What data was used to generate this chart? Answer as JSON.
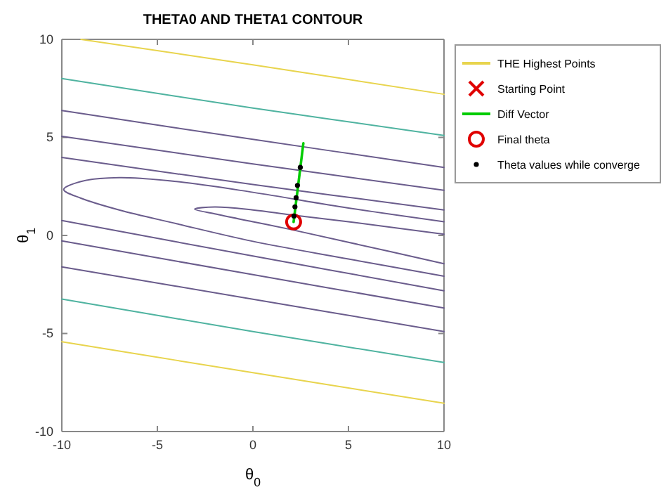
{
  "chart_data": {
    "type": "line",
    "title": "THETA0 AND THETA1 CONTOUR",
    "xlabel": "θ$_{0}$",
    "ylabel": "θ$_{1}$",
    "xlim": [
      -10,
      10
    ],
    "ylim": [
      -10,
      10
    ],
    "xticks": [
      -10,
      -5,
      0,
      5,
      10
    ],
    "yticks": [
      -10,
      -5,
      0,
      5,
      10
    ],
    "grid": false,
    "legend": "right",
    "series": [
      {
        "name": "THE Highest Points",
        "type": "line",
        "color": "#e8d44d",
        "x": [
          -9,
          0,
          10
        ],
        "values": [
          10,
          8.7,
          7.2
        ]
      },
      {
        "type": "line",
        "color": "#e8d44d",
        "x": [
          -10,
          0,
          10
        ],
        "values": [
          -5.42,
          -7,
          -8.56
        ]
      },
      {
        "type": "line",
        "color": "#4fb3a0",
        "x": [
          -10,
          0,
          10
        ],
        "values": [
          8,
          6.5,
          5.1
        ]
      },
      {
        "type": "line",
        "color": "#4fb3a0",
        "x": [
          -10,
          0,
          10
        ],
        "values": [
          -3.24,
          -4.9,
          -6.48
        ]
      },
      {
        "type": "line",
        "color": "#6a5c8c",
        "x": [
          -10,
          0,
          10
        ],
        "values": [
          6.37,
          4.9,
          3.47
        ]
      },
      {
        "type": "line",
        "color": "#6a5c8c",
        "x": [
          -10,
          0,
          10
        ],
        "values": [
          5.05,
          3.65,
          2.3
        ]
      },
      {
        "type": "line",
        "color": "#6a5c8c",
        "x": [
          -10,
          0,
          10
        ],
        "values": [
          3.98,
          2.6,
          1.3
        ]
      },
      {
        "type": "line",
        "color": "#6a5c8c",
        "x": [
          -10,
          0,
          10
        ],
        "values": [
          0.76,
          -1.05,
          -2.82
        ]
      },
      {
        "type": "line",
        "color": "#6a5c8c",
        "x": [
          -10,
          0,
          10
        ],
        "values": [
          -0.28,
          -2,
          -3.7
        ]
      },
      {
        "type": "line",
        "color": "#6a5c8c",
        "x": [
          -10,
          0,
          10
        ],
        "values": [
          -1.6,
          -3.25,
          -4.9
        ]
      },
      {
        "type": "line",
        "color": "#6a5c8c",
        "x": [
          10,
          5,
          0,
          -4,
          -7,
          -9,
          -9.9,
          -9,
          -7,
          -4,
          0,
          5,
          10
        ],
        "values": [
          0.7,
          1.4,
          2.2,
          2.75,
          2.95,
          2.75,
          2.34,
          1.9,
          1.3,
          0.6,
          -0.3,
          -1.2,
          -2.08
        ]
      },
      {
        "type": "line",
        "color": "#6a5c8c",
        "x": [
          10,
          5,
          2,
          0,
          -2,
          -3.05,
          -2,
          0,
          2,
          5,
          10
        ],
        "values": [
          0.06,
          0.7,
          1.05,
          1.3,
          1.45,
          1.34,
          1.1,
          0.7,
          0.3,
          -0.35,
          -1.44
        ]
      },
      {
        "name": "Starting Point",
        "type": "scatter",
        "marker": "cross",
        "color": "#e00000",
        "x": [
          null
        ],
        "values": [
          null
        ]
      },
      {
        "name": "Diff Vector",
        "color": "#00cc00",
        "x": [
          2.13,
          2.64
        ],
        "values": [
          0.69,
          4.7
        ]
      },
      {
        "name": "Final theta",
        "type": "scatter",
        "marker": "circle",
        "color": "#e00000",
        "x": [
          2.13
        ],
        "values": [
          0.69
        ]
      },
      {
        "name": "Theta values while converge",
        "type": "scatter",
        "marker": "dot",
        "color": "#000000",
        "x": [
          2.15,
          2.2,
          2.26,
          2.33,
          2.48
        ],
        "values": [
          0.99,
          1.46,
          1.92,
          2.55,
          3.47
        ]
      }
    ]
  }
}
